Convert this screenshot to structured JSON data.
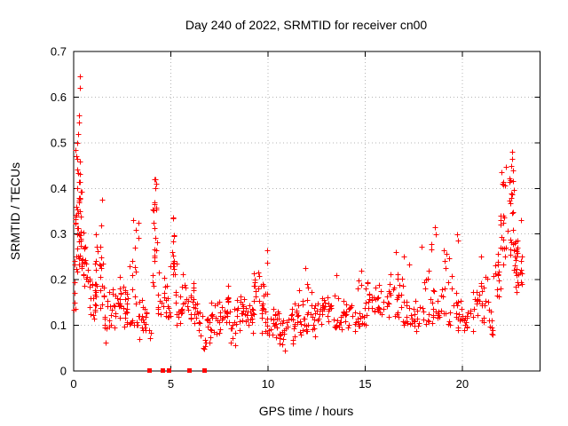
{
  "window": {
    "background": "#ffffff"
  },
  "chart_data": {
    "type": "scatter",
    "title": "Day 240 of 2022, SRMTID for receiver cn00",
    "xlabel": "GPS time / hours",
    "ylabel": "SRMTID / TECUs",
    "xlim": [
      0,
      24
    ],
    "ylim": [
      0,
      0.7
    ],
    "xticks": [
      0,
      5,
      10,
      15,
      20
    ],
    "yticks": [
      0,
      0.1,
      0.2,
      0.3,
      0.4,
      0.5,
      0.6,
      0.7
    ],
    "grid": true,
    "legend_position": "none",
    "marker_color": "#ff0000",
    "grid_color": "#b4b4b4",
    "border_color": "#000000",
    "seed": 240,
    "series": [
      {
        "name": "srmtid-points",
        "marker": "plus",
        "color": "#ff0000",
        "envelope_bands": [
          [
            0.0,
            0.15,
            10,
            0.13,
            0.26,
            "u"
          ],
          [
            0.05,
            0.4,
            26,
            0.28,
            0.47,
            "m"
          ],
          [
            0.15,
            0.5,
            16,
            0.2,
            0.33,
            "m"
          ],
          [
            0.4,
            0.8,
            18,
            0.15,
            0.3,
            "m"
          ],
          [
            0.8,
            1.2,
            20,
            0.1,
            0.22,
            "m"
          ],
          [
            1.1,
            1.25,
            8,
            0.12,
            0.3,
            "u"
          ],
          [
            1.3,
            1.55,
            14,
            0.13,
            0.37,
            "u"
          ],
          [
            1.55,
            2.1,
            22,
            0.05,
            0.2,
            "m"
          ],
          [
            2.1,
            2.45,
            16,
            0.1,
            0.23,
            "m"
          ],
          [
            2.45,
            2.8,
            16,
            0.08,
            0.2,
            "m"
          ],
          [
            2.85,
            3.35,
            22,
            0.1,
            0.33,
            "l"
          ],
          [
            3.35,
            3.7,
            14,
            0.07,
            0.17,
            "m"
          ],
          [
            3.7,
            4.0,
            8,
            0.06,
            0.14,
            "m"
          ],
          [
            4.05,
            4.3,
            20,
            0.14,
            0.42,
            "u"
          ],
          [
            4.3,
            4.75,
            14,
            0.1,
            0.22,
            "m"
          ],
          [
            4.75,
            5.0,
            10,
            0.09,
            0.19,
            "m"
          ],
          [
            4.95,
            5.25,
            16,
            0.16,
            0.34,
            "u"
          ],
          [
            5.25,
            5.7,
            16,
            0.1,
            0.27,
            "l"
          ],
          [
            5.7,
            6.2,
            18,
            0.09,
            0.22,
            "m"
          ],
          [
            6.2,
            6.65,
            14,
            0.07,
            0.16,
            "m"
          ],
          [
            6.65,
            7.05,
            14,
            0.03,
            0.12,
            "m"
          ],
          [
            7.05,
            7.6,
            18,
            0.07,
            0.17,
            "m"
          ],
          [
            7.6,
            8.05,
            18,
            0.08,
            0.2,
            "m"
          ],
          [
            8.05,
            8.35,
            10,
            0.04,
            0.14,
            "m"
          ],
          [
            8.35,
            8.75,
            16,
            0.08,
            0.2,
            "m"
          ],
          [
            8.75,
            9.25,
            18,
            0.06,
            0.17,
            "m"
          ],
          [
            9.25,
            9.7,
            18,
            0.1,
            0.23,
            "m"
          ],
          [
            9.7,
            10.15,
            20,
            0.08,
            0.26,
            "l"
          ],
          [
            10.15,
            10.55,
            16,
            0.06,
            0.16,
            "m"
          ],
          [
            10.55,
            11.05,
            18,
            0.03,
            0.13,
            "m"
          ],
          [
            11.05,
            11.55,
            18,
            0.05,
            0.16,
            "m"
          ],
          [
            11.55,
            12.25,
            24,
            0.08,
            0.22,
            "l"
          ],
          [
            12.25,
            12.75,
            18,
            0.07,
            0.17,
            "m"
          ],
          [
            12.75,
            13.35,
            20,
            0.08,
            0.18,
            "m"
          ],
          [
            13.35,
            13.85,
            18,
            0.09,
            0.21,
            "l"
          ],
          [
            13.85,
            14.55,
            20,
            0.08,
            0.18,
            "m"
          ],
          [
            14.55,
            15.05,
            18,
            0.1,
            0.22,
            "l"
          ],
          [
            15.05,
            15.65,
            18,
            0.1,
            0.21,
            "m"
          ],
          [
            15.65,
            16.25,
            18,
            0.1,
            0.21,
            "m"
          ],
          [
            16.25,
            16.85,
            18,
            0.11,
            0.23,
            "m"
          ],
          [
            16.85,
            17.35,
            16,
            0.1,
            0.25,
            "l"
          ],
          [
            17.35,
            17.85,
            14,
            0.07,
            0.17,
            "m"
          ],
          [
            17.85,
            18.45,
            18,
            0.1,
            0.28,
            "l"
          ],
          [
            18.45,
            18.95,
            14,
            0.08,
            0.18,
            "m"
          ],
          [
            18.95,
            19.45,
            16,
            0.1,
            0.27,
            "l"
          ],
          [
            19.45,
            19.9,
            14,
            0.08,
            0.19,
            "m"
          ],
          [
            19.9,
            20.35,
            14,
            0.05,
            0.15,
            "m"
          ],
          [
            20.35,
            20.85,
            14,
            0.08,
            0.19,
            "m"
          ],
          [
            20.85,
            21.35,
            16,
            0.1,
            0.24,
            "m"
          ],
          [
            21.35,
            21.6,
            10,
            0.06,
            0.16,
            "m"
          ],
          [
            21.6,
            21.95,
            14,
            0.15,
            0.28,
            "m"
          ],
          [
            21.95,
            22.25,
            16,
            0.2,
            0.43,
            "u"
          ],
          [
            22.25,
            22.65,
            18,
            0.22,
            0.47,
            "u"
          ],
          [
            22.45,
            22.85,
            16,
            0.22,
            0.3,
            "m"
          ],
          [
            22.65,
            23.1,
            16,
            0.15,
            0.27,
            "m"
          ]
        ],
        "peak_points": [
          [
            0.3,
            0.645
          ],
          [
            0.3,
            0.62
          ],
          [
            0.27,
            0.56
          ],
          [
            0.28,
            0.545
          ],
          [
            0.22,
            0.52
          ],
          [
            0.18,
            0.5
          ],
          [
            0.1,
            0.485
          ],
          [
            0.14,
            0.47
          ],
          [
            0.2,
            0.465
          ],
          [
            1.45,
            0.375
          ],
          [
            1.15,
            0.3
          ],
          [
            3.05,
            0.33
          ],
          [
            4.18,
            0.42
          ],
          [
            4.2,
            0.4
          ],
          [
            5.1,
            0.335
          ],
          [
            9.95,
            0.265
          ],
          [
            11.9,
            0.225
          ],
          [
            13.5,
            0.21
          ],
          [
            14.8,
            0.22
          ],
          [
            16.6,
            0.26
          ],
          [
            17.0,
            0.25
          ],
          [
            18.6,
            0.315
          ],
          [
            18.62,
            0.3
          ],
          [
            19.75,
            0.3
          ],
          [
            19.78,
            0.285
          ],
          [
            20.95,
            0.25
          ],
          [
            22.0,
            0.435
          ],
          [
            22.05,
            0.41
          ],
          [
            22.55,
            0.48
          ],
          [
            22.57,
            0.465
          ],
          [
            22.6,
            0.44
          ],
          [
            23.0,
            0.33
          ],
          [
            23.05,
            0.25
          ]
        ]
      },
      {
        "name": "flagged-zero-points",
        "marker": "filled-square",
        "color": "#ff0000",
        "points": [
          [
            3.9,
            0
          ],
          [
            4.58,
            0
          ],
          [
            4.92,
            0
          ],
          [
            5.95,
            0
          ],
          [
            6.74,
            0
          ]
        ]
      }
    ]
  }
}
